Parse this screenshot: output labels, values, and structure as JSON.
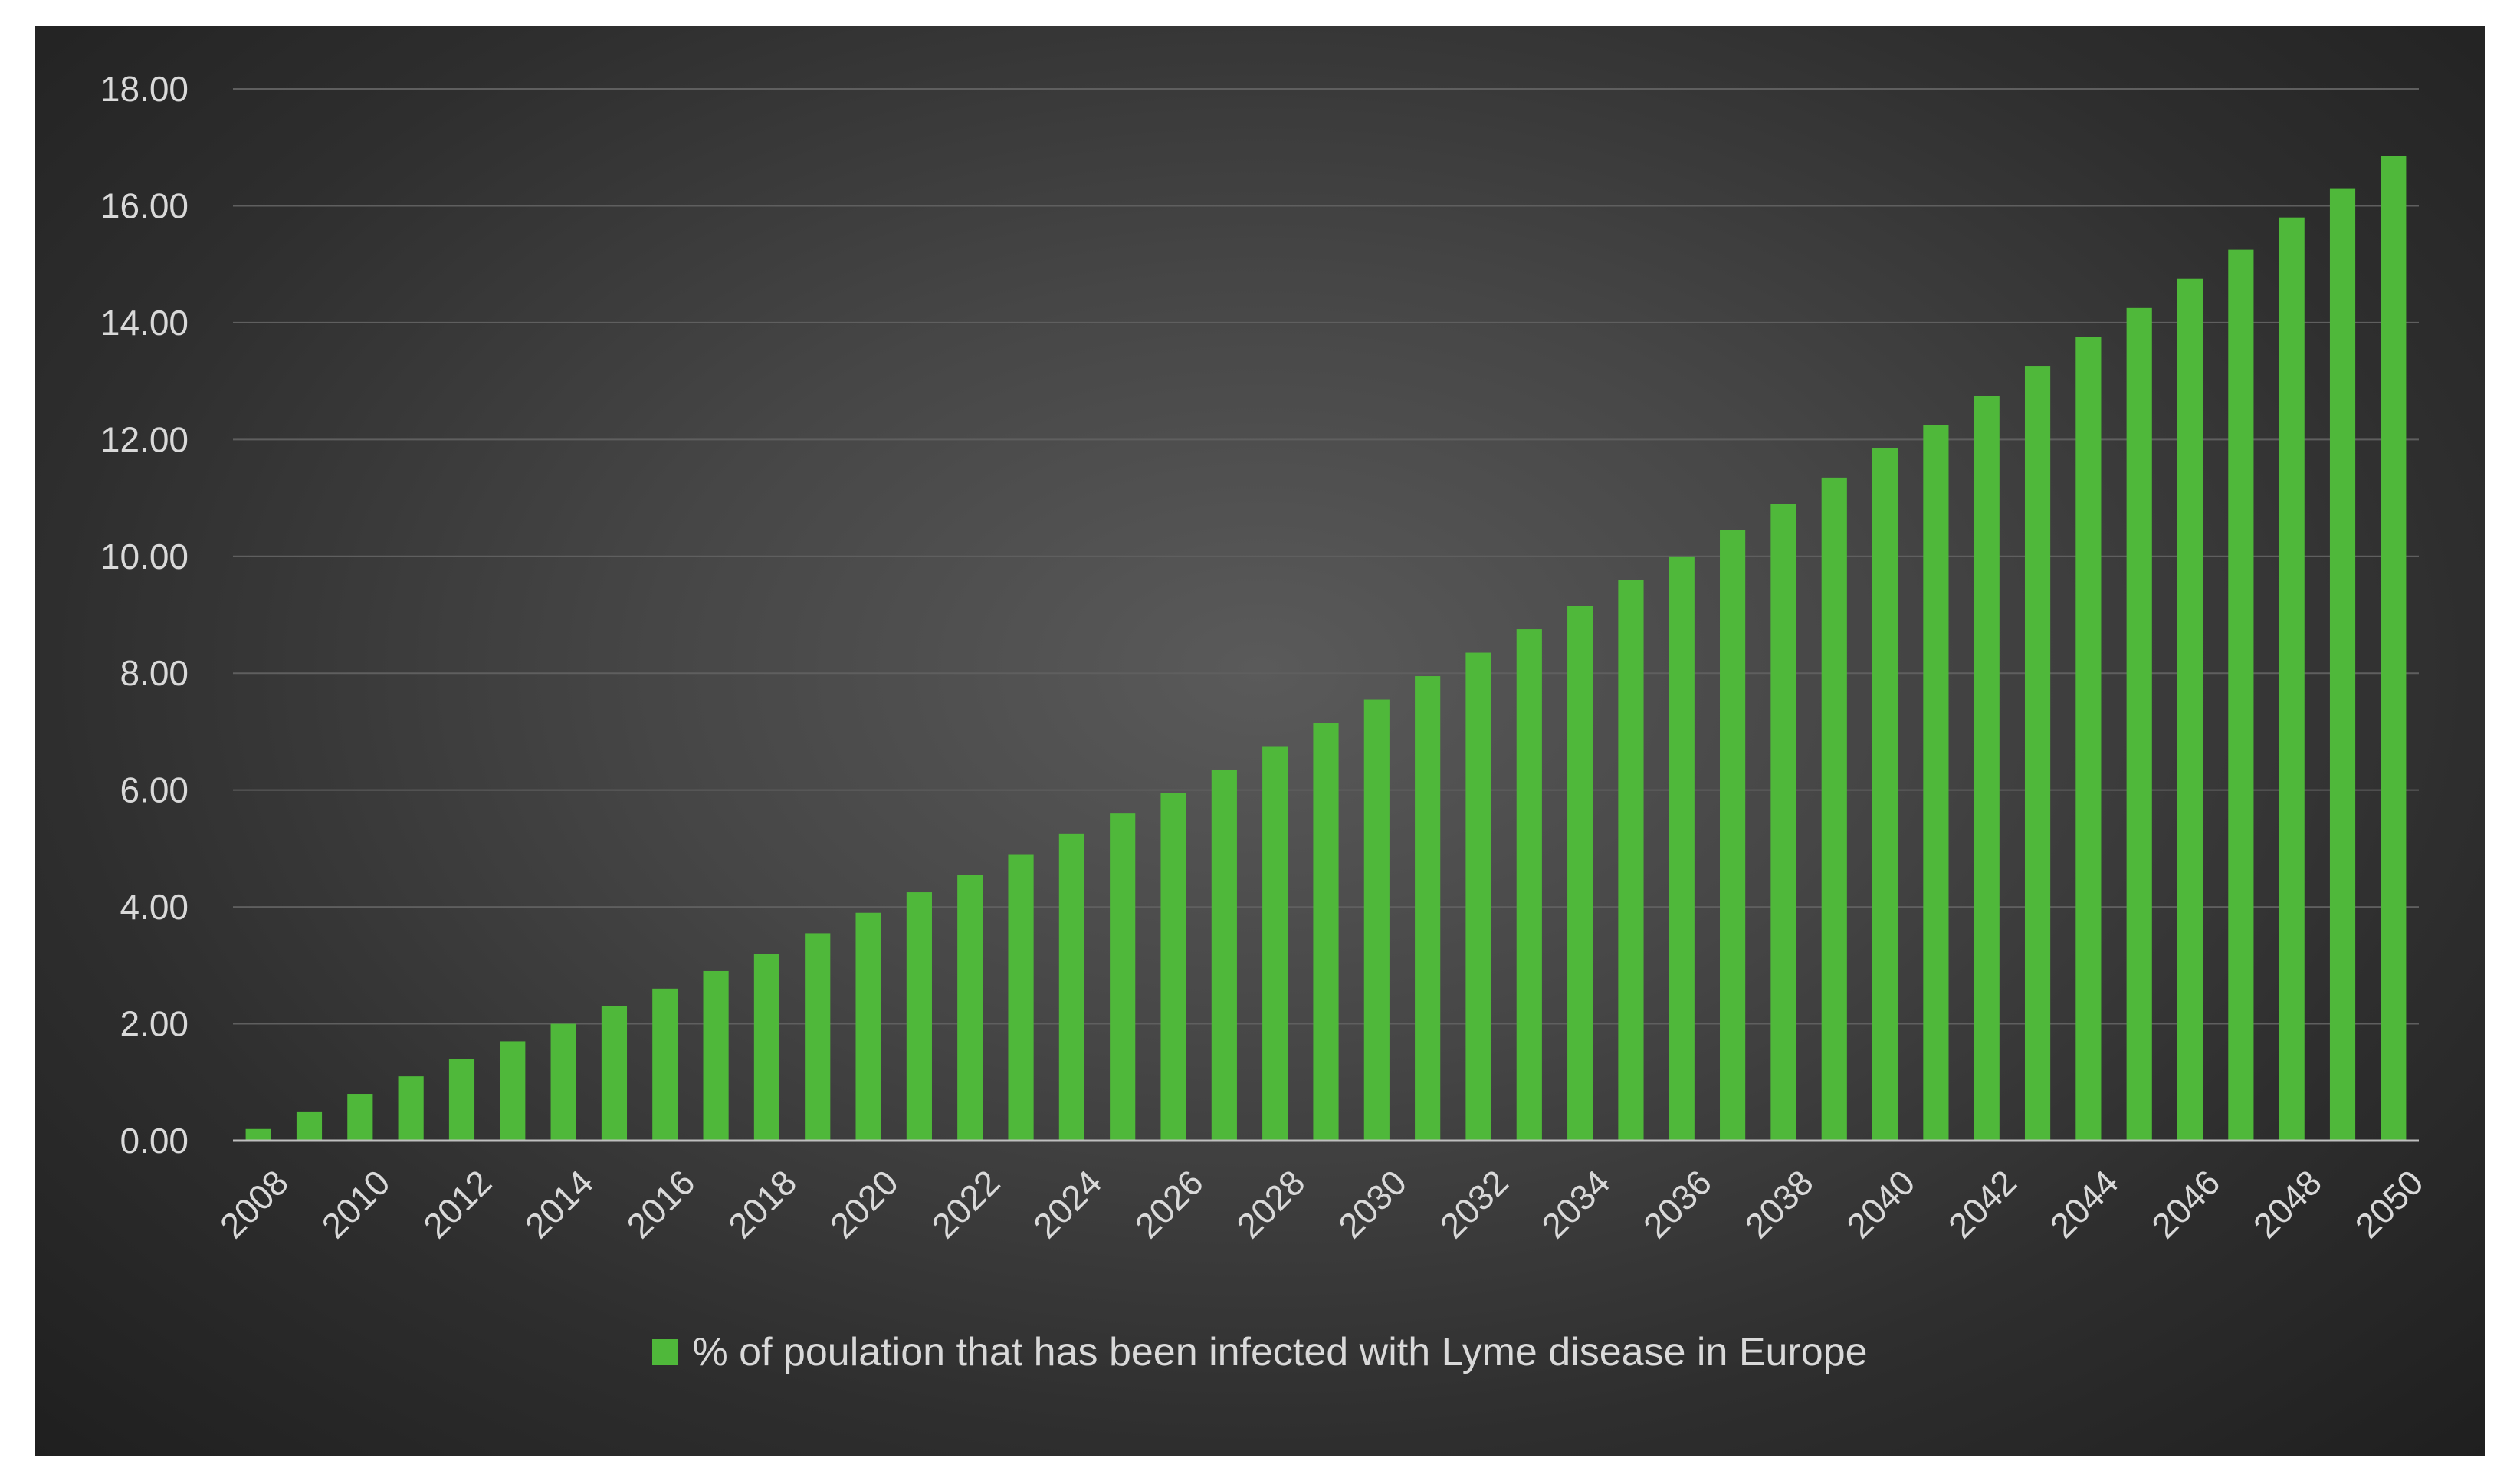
{
  "chart_data": {
    "type": "bar",
    "title": "",
    "xlabel": "",
    "ylabel": "",
    "ylim": [
      0,
      18
    ],
    "y_ticks": [
      "0.00",
      "2.00",
      "4.00",
      "6.00",
      "8.00",
      "10.00",
      "12.00",
      "14.00",
      "16.00",
      "18.00"
    ],
    "y_tick_values": [
      0,
      2,
      4,
      6,
      8,
      10,
      12,
      14,
      16,
      18
    ],
    "categories": [
      2008,
      2009,
      2010,
      2011,
      2012,
      2013,
      2014,
      2015,
      2016,
      2017,
      2018,
      2019,
      2020,
      2021,
      2022,
      2023,
      2024,
      2025,
      2026,
      2027,
      2028,
      2029,
      2030,
      2031,
      2032,
      2033,
      2034,
      2035,
      2036,
      2037,
      2038,
      2039,
      2040,
      2041,
      2042,
      2043,
      2044,
      2045,
      2046,
      2047,
      2048,
      2049,
      2050
    ],
    "x_tick_labels": [
      "2008",
      "2010",
      "2012",
      "2014",
      "2016",
      "2018",
      "2020",
      "2022",
      "2024",
      "2026",
      "2028",
      "2030",
      "2032",
      "2034",
      "2036",
      "2038",
      "2040",
      "2042",
      "2044",
      "2046",
      "2048",
      "2050"
    ],
    "series": [
      {
        "name": "% of poulation that has been infected with Lyme disease in Europe",
        "color": "#4fb83a",
        "values": [
          0.2,
          0.5,
          0.8,
          1.1,
          1.4,
          1.7,
          2.0,
          2.3,
          2.6,
          2.9,
          3.2,
          3.55,
          3.9,
          4.25,
          4.55,
          4.9,
          5.25,
          5.6,
          5.95,
          6.35,
          6.75,
          7.15,
          7.55,
          7.95,
          8.35,
          8.75,
          9.15,
          9.6,
          10.0,
          10.45,
          10.9,
          11.35,
          11.85,
          12.25,
          12.75,
          13.25,
          13.75,
          14.25,
          14.75,
          15.25,
          15.8,
          16.3,
          16.85
        ]
      }
    ],
    "gridlines": true,
    "legend_position": "bottom-center"
  }
}
